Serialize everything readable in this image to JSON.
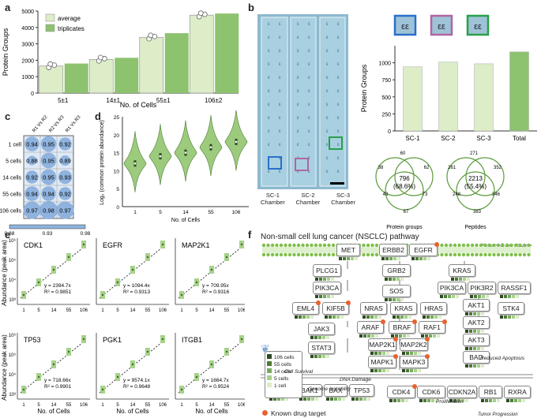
{
  "panels": {
    "a": "a",
    "b": "b",
    "c": "c",
    "d": "d",
    "e": "e",
    "f": "f"
  },
  "panel_a": {
    "ylabel": "Protein Groups",
    "xlabel": "No. of Cells",
    "legend": [
      "average",
      "triplicates"
    ],
    "yticks": [
      "0",
      "1000",
      "2000",
      "3000",
      "4000",
      "5000"
    ],
    "categories": [
      "5±1",
      "14±1",
      "55±1",
      "106±2"
    ]
  },
  "panel_b": {
    "chambers": [
      "SC-1\nChamber",
      "SC-2\nChamber",
      "SC-3\nChamber"
    ],
    "chamber_names": [
      "SC-1",
      "SC-2",
      "SC-3"
    ],
    "chamber_sub": "Chamber",
    "ylabel": "Protein Groups",
    "yticks": [
      "0",
      "250",
      "500",
      "750",
      "1000"
    ],
    "categories": [
      "SC-1",
      "SC-2",
      "SC-3",
      "Total"
    ],
    "venn1": {
      "center": "796",
      "pct": "(68.6%)",
      "n": [
        "38",
        "60",
        "62",
        "43",
        "73",
        "67"
      ],
      "label": "Protein groups"
    },
    "venn2": {
      "center": "2213",
      "pct": "(55.4%)",
      "n": [
        "261",
        "271",
        "352",
        "248",
        "346",
        "383"
      ],
      "label": "Peptides"
    }
  },
  "panel_c": {
    "cols": [
      "R1 Vs R2",
      "R2 Vs R3",
      "R1 Vs R3"
    ],
    "rows": [
      "1 cell",
      "5 cells",
      "14 cells",
      "55 cells",
      "106 cells"
    ],
    "values": [
      [
        "0.94",
        "0.95",
        "0.92"
      ],
      [
        "0.88",
        "0.95",
        "0.89"
      ],
      [
        "0.92",
        "0.95",
        "0.93"
      ],
      [
        "0.94",
        "0.94",
        "0.92"
      ],
      [
        "0.97",
        "0.98",
        "0.97"
      ]
    ],
    "scale": [
      "0.88",
      "0.93",
      "0.98"
    ]
  },
  "panel_d": {
    "ylabel": "Log₂ (common protein abundance)",
    "xlabel": "No. of Cells",
    "xticks": [
      "1",
      "5",
      "14",
      "55",
      "106"
    ],
    "yticks": [
      "0",
      "5",
      "10",
      "15",
      "20",
      "25"
    ]
  },
  "panel_e": {
    "ylabel": "Abundance (peak area)",
    "xlabel": "No. of Cells",
    "xticks": [
      "1",
      "5",
      "14",
      "55",
      "106"
    ],
    "yticks": [
      "10³",
      "10⁴",
      "10⁵",
      "10⁶"
    ],
    "genes": [
      {
        "name": "CDK1",
        "eq": "y = 2394.7x",
        "r2": "R² = 0.9851"
      },
      {
        "name": "EGFR",
        "eq": "y = 1094.4x",
        "r2": "R² = 0.9313"
      },
      {
        "name": "MAP2K1",
        "eq": "y = 709.95x",
        "r2": "R² = 0.9316"
      },
      {
        "name": "TP53",
        "eq": "y = 718.66x",
        "r2": "R² = 0.9901"
      },
      {
        "name": "PGK1",
        "eq": "y = 9574.1x",
        "r2": "R² = 0.9648"
      },
      {
        "name": "ITGB1",
        "eq": "y = 1664.7x",
        "r2": "R² = 0.9524"
      }
    ]
  },
  "panel_f": {
    "title": "Non-small cell lung cancer (NSCLC) pathway",
    "extracellular": "Extracellular Space",
    "legend": [
      "106 cells",
      "55 cells",
      "14 cells",
      "5 cells",
      "1 cell"
    ],
    "labels": {
      "survival": "Cell Survival",
      "dna": "DNA Damage",
      "genome": "Genome Instability",
      "prolif": "Proliferation",
      "apop": "Reduced Apoptosis",
      "tumor": "Tumor Progression",
      "drug": "Known drug target"
    }
  },
  "colors": {
    "green": "#8dc26f",
    "lightgreen": "#dcedc8",
    "blue": "#a9c4e4"
  },
  "chart_data": [
    {
      "type": "bar",
      "categories": [
        "5±1",
        "14±1",
        "55±1",
        "106±2"
      ],
      "series": [
        {
          "name": "average",
          "values": [
            1650,
            2050,
            3400,
            4750
          ]
        },
        {
          "name": "triplicates",
          "values": [
            1800,
            2150,
            3650,
            4850
          ]
        }
      ],
      "ylim": [
        0,
        5000
      ]
    },
    {
      "type": "bar",
      "categories": [
        "SC-1",
        "SC-2",
        "SC-3",
        "Total"
      ],
      "values": [
        940,
        1010,
        985,
        1160
      ],
      "ylim": [
        0,
        1250
      ]
    }
  ]
}
